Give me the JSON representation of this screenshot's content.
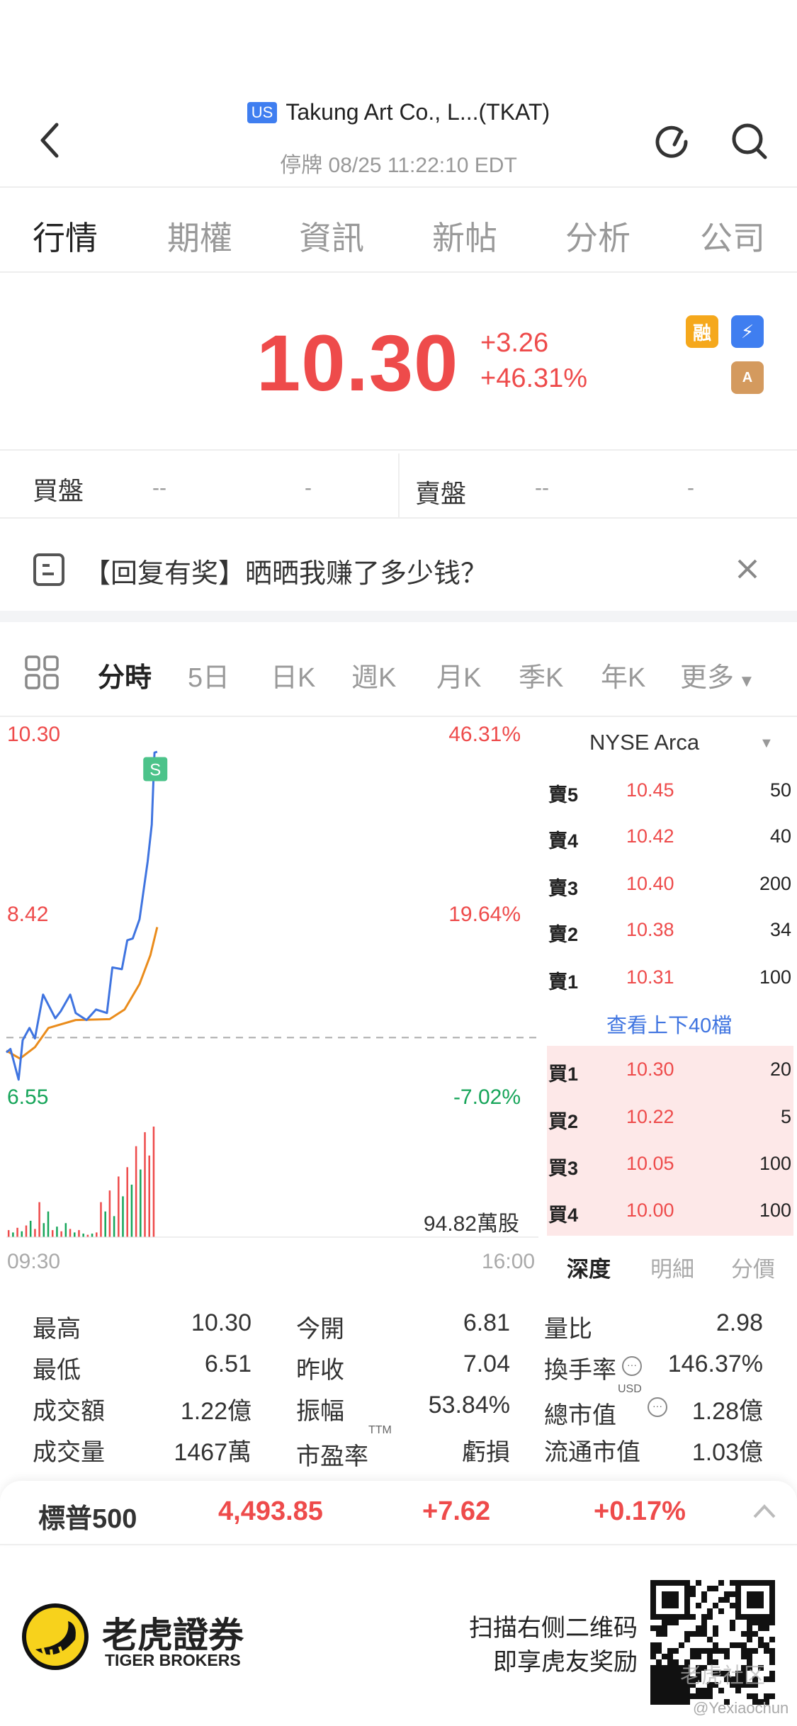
{
  "header": {
    "market_badge": "US",
    "title": "Takung Art Co., L...(TKAT)",
    "status": "停牌 08/25 11:22:10 EDT"
  },
  "tabs": [
    "行情",
    "期權",
    "資訊",
    "新帖",
    "分析",
    "公司"
  ],
  "quote": {
    "price": "10.30",
    "change": "+3.26",
    "change_pct": "+46.31%",
    "badges": [
      "融",
      "⚡",
      "A"
    ]
  },
  "bidask": {
    "bid_label": "買盤",
    "bid_val1": "--",
    "bid_val2": "-",
    "ask_label": "賣盤",
    "ask_val1": "--",
    "ask_val2": "-"
  },
  "banner": {
    "text": "【回复有奖】晒晒我赚了多少钱？"
  },
  "chart_tabs": [
    "分時",
    "5日",
    "日K",
    "週K",
    "月K",
    "季K",
    "年K",
    "更多"
  ],
  "chart_data": {
    "type": "line",
    "x_range": [
      "09:30",
      "16:00"
    ],
    "y_labels_left": [
      "10.30",
      "8.42",
      "6.55"
    ],
    "y_labels_right": [
      "46.31%",
      "19.64%",
      "-7.02%"
    ],
    "prev_close": 7.04,
    "ylim": [
      6.55,
      10.3
    ],
    "series": [
      {
        "key": "price",
        "color": "#3f74e0",
        "minutes": [
          0,
          3,
          9,
          12,
          17,
          21,
          27,
          31,
          36,
          40,
          47,
          51,
          59,
          66,
          74,
          78,
          85,
          89,
          93,
          98,
          104,
          107,
          109,
          111
        ],
        "values": [
          6.87,
          6.91,
          6.56,
          7.01,
          7.15,
          7.03,
          7.53,
          7.41,
          7.26,
          7.34,
          7.53,
          7.32,
          7.24,
          7.36,
          7.32,
          7.84,
          7.82,
          8.15,
          8.17,
          8.39,
          9.05,
          9.47,
          10.29,
          10.3
        ]
      },
      {
        "key": "average",
        "color": "#ea8c1c",
        "minutes": [
          0,
          10,
          21,
          31,
          51,
          76,
          87,
          98,
          106,
          111
        ],
        "values": [
          6.89,
          6.8,
          6.93,
          7.15,
          7.24,
          7.25,
          7.36,
          7.65,
          7.98,
          8.3
        ]
      }
    ],
    "volume": {
      "max_label": "94.82萬股",
      "max": 94.82,
      "values": [
        6,
        4,
        8,
        5,
        10,
        14,
        7,
        30,
        12,
        22,
        6,
        9,
        5,
        12,
        7,
        4,
        6,
        3,
        2,
        3,
        4,
        30,
        22,
        40,
        18,
        52,
        35,
        60,
        45,
        78,
        58,
        90,
        70,
        94.82
      ],
      "colors": [
        "r",
        "g",
        "r",
        "g",
        "r",
        "g",
        "r",
        "r",
        "g",
        "g",
        "r",
        "g",
        "r",
        "g",
        "r",
        "g",
        "r",
        "g",
        "r",
        "g",
        "r",
        "r",
        "g",
        "r",
        "g",
        "r",
        "g",
        "r",
        "g",
        "r",
        "g",
        "r",
        "r",
        "r"
      ]
    },
    "s_marker": "S"
  },
  "orderbook": {
    "exchange": "NYSE Arca",
    "asks": [
      {
        "label": "賣5",
        "price": "10.45",
        "size": "50"
      },
      {
        "label": "賣4",
        "price": "10.42",
        "size": "40"
      },
      {
        "label": "賣3",
        "price": "10.40",
        "size": "200"
      },
      {
        "label": "賣2",
        "price": "10.38",
        "size": "34"
      },
      {
        "label": "賣1",
        "price": "10.31",
        "size": "100"
      }
    ],
    "more": "查看上下40檔",
    "bids": [
      {
        "label": "買1",
        "price": "10.30",
        "size": "20"
      },
      {
        "label": "買2",
        "price": "10.22",
        "size": "5"
      },
      {
        "label": "買3",
        "price": "10.05",
        "size": "100"
      },
      {
        "label": "買4",
        "price": "10.00",
        "size": "100"
      }
    ],
    "tabs": [
      "深度",
      "明細",
      "分價"
    ]
  },
  "stats": [
    [
      {
        "l": "最高",
        "v": "10.30"
      },
      {
        "l": "今開",
        "v": "6.81"
      },
      {
        "l": "量比",
        "v": "2.98"
      }
    ],
    [
      {
        "l": "最低",
        "v": "6.51"
      },
      {
        "l": "昨收",
        "v": "7.04"
      },
      {
        "l": "換手率",
        "v": "146.37%"
      }
    ],
    [
      {
        "l": "成交額",
        "v": "1.22億"
      },
      {
        "l": "振幅",
        "v": "53.84%"
      },
      {
        "l": "總市值",
        "v": "1.28億",
        "sup": "USD"
      }
    ],
    [
      {
        "l": "成交量",
        "v": "1467萬"
      },
      {
        "l": "市盈率",
        "v": "虧損",
        "sup": "TTM"
      },
      {
        "l": "流通市值",
        "v": "1.03億"
      }
    ]
  ],
  "index_bar": {
    "name": "標普500",
    "value": "4,493.85",
    "change": "+7.62",
    "pct": "+0.17%"
  },
  "footer": {
    "brand_cn": "老虎證券",
    "brand_en": "TIGER BROKERS",
    "promo1": "扫描右侧二维码",
    "promo2": "即享虎友奖励",
    "watermark": "老虎社区",
    "handle": "@Yexiaochun"
  }
}
